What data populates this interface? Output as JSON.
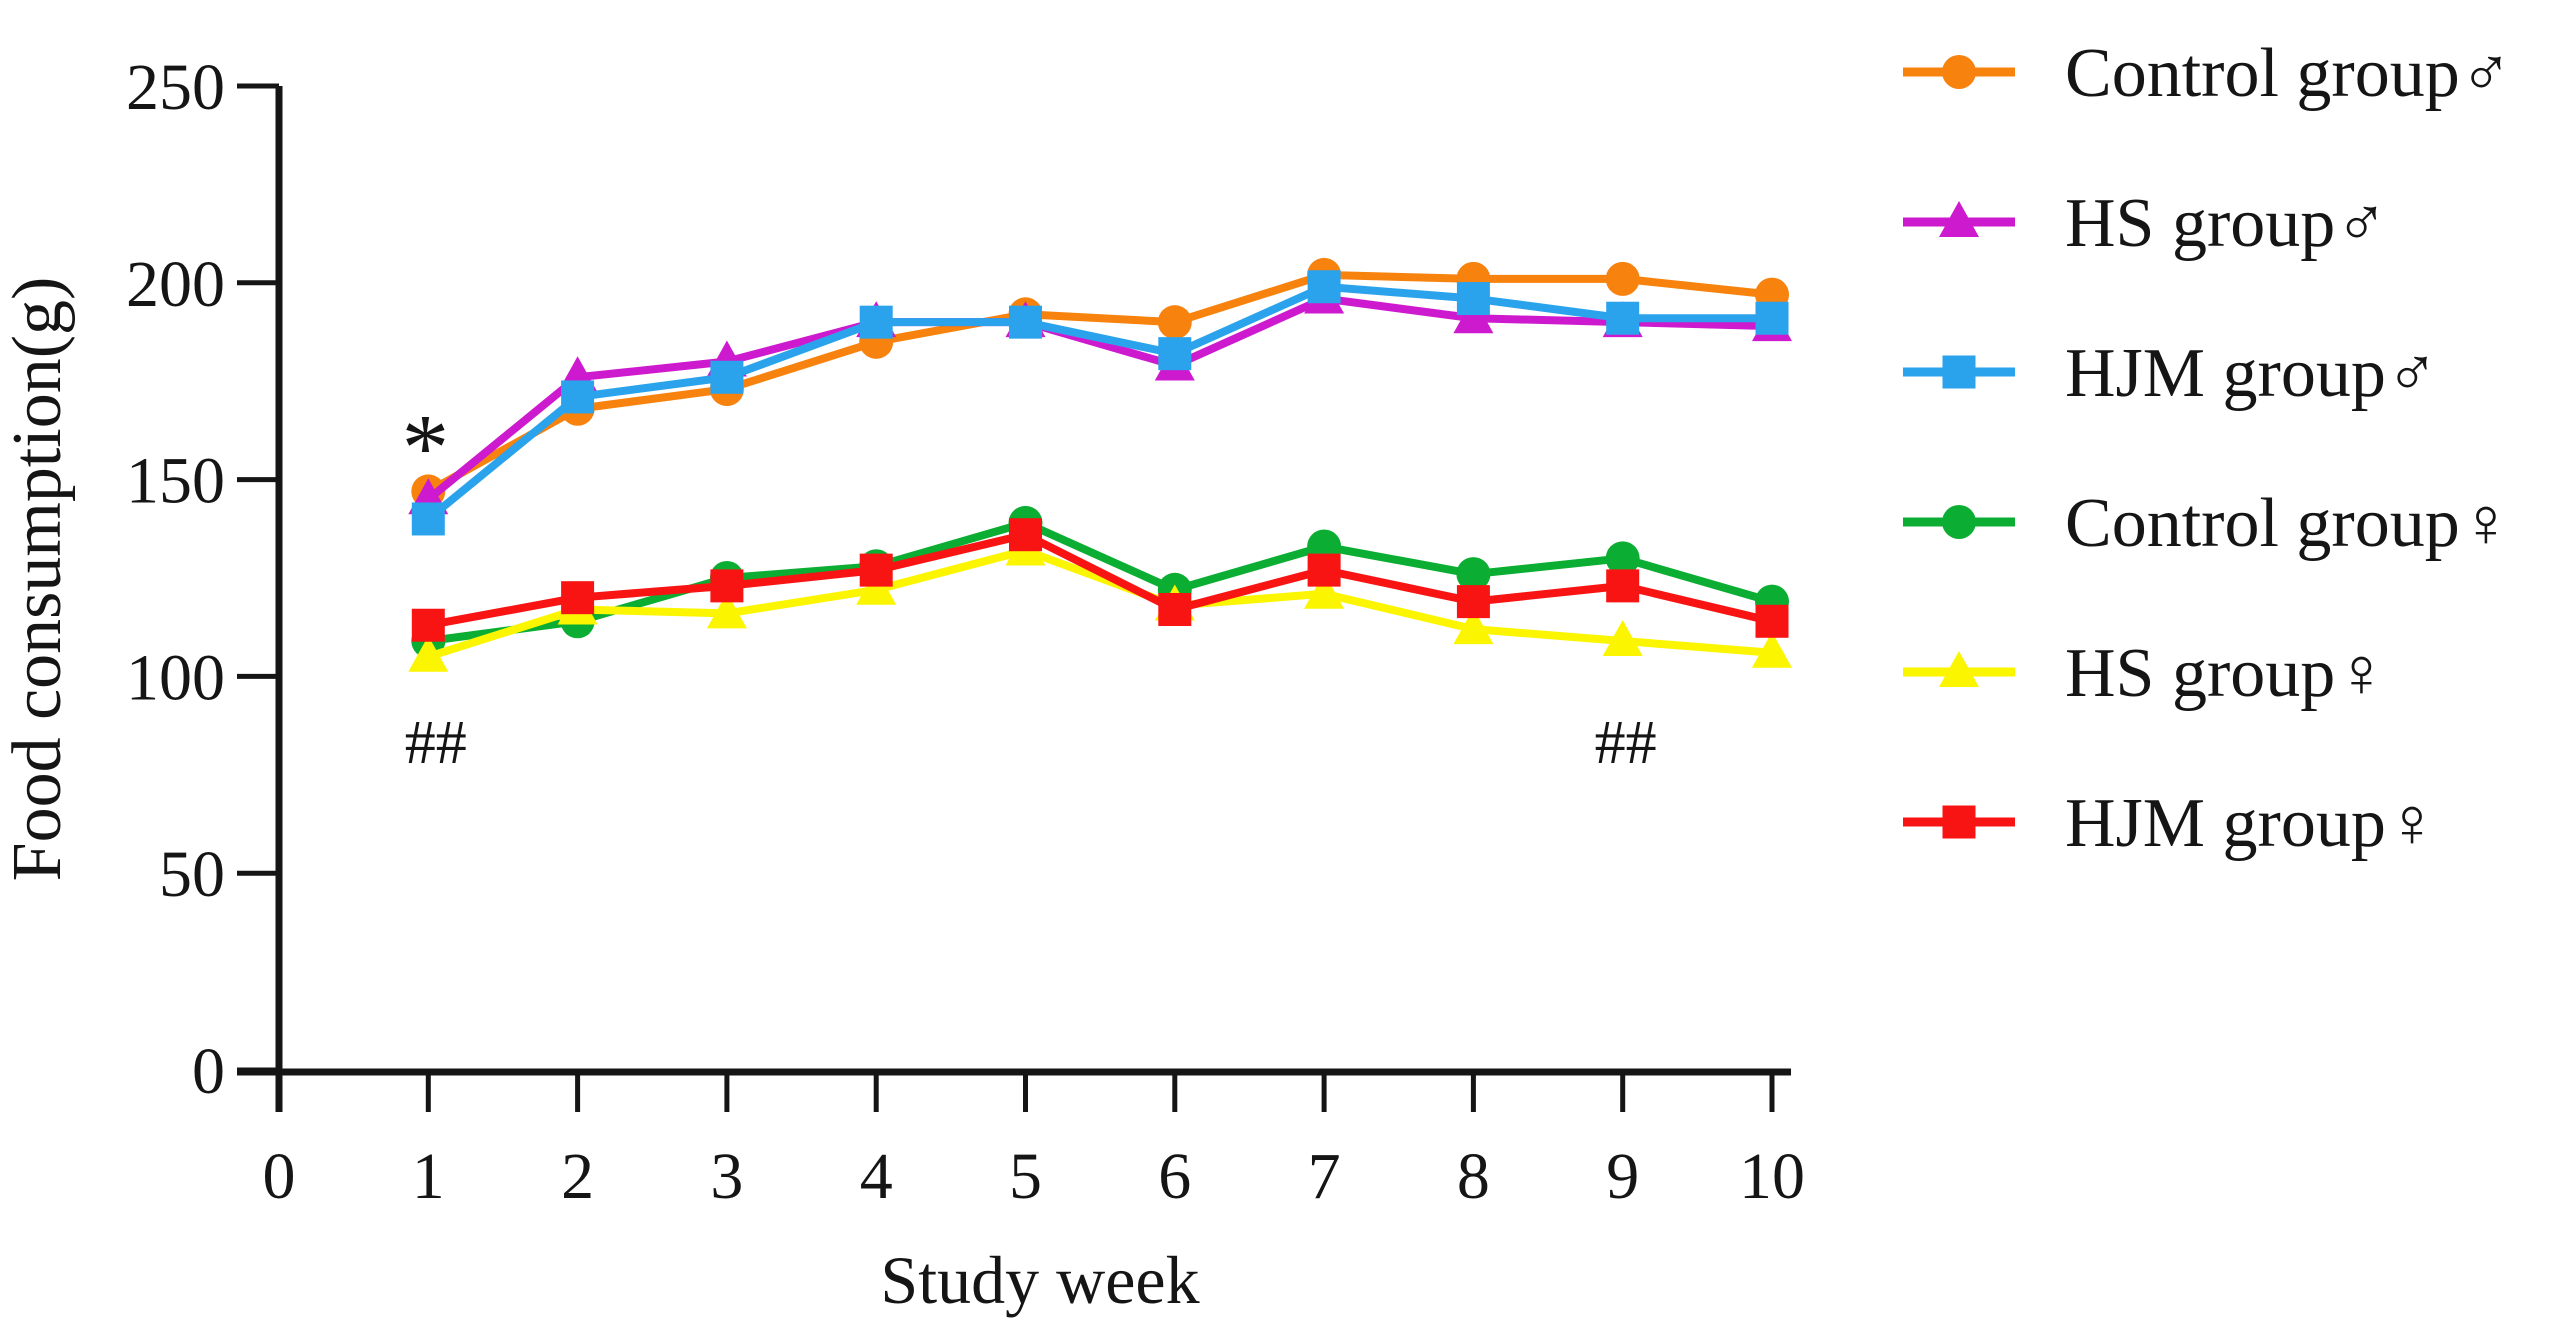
{
  "figure": {
    "background": "#ffffff",
    "text_color": "#151515",
    "axis_color": "#151515"
  },
  "chart_data": {
    "type": "line",
    "title": "",
    "xlabel": "Study week",
    "ylabel": "Food consumption(g)",
    "x": [
      1,
      2,
      3,
      4,
      5,
      6,
      7,
      8,
      9,
      10
    ],
    "xticks": [
      0,
      1,
      2,
      3,
      4,
      5,
      6,
      7,
      8,
      9,
      10
    ],
    "yticks": [
      0,
      50,
      100,
      150,
      200,
      250
    ],
    "xlim": [
      0,
      10.4
    ],
    "ylim": [
      0,
      250
    ],
    "grid": false,
    "legend_position": "right-outside",
    "series": [
      {
        "name": "Control group♂",
        "marker": "circle",
        "color": "#F7820D",
        "values": [
          147,
          168,
          173,
          185,
          192,
          190,
          202,
          201,
          201,
          197
        ]
      },
      {
        "name": "HS group♂",
        "marker": "triangle",
        "color": "#CE1ACE",
        "values": [
          145,
          176,
          180,
          190,
          190,
          179,
          196,
          191,
          190,
          189
        ]
      },
      {
        "name": "HJM group♂",
        "marker": "square",
        "color": "#2BA3EC",
        "values": [
          140,
          171,
          176,
          190,
          190,
          182,
          199,
          196,
          191,
          191
        ]
      },
      {
        "name": "Control group♀",
        "marker": "circle",
        "color": "#0BAE32",
        "values": [
          109,
          114,
          125,
          128,
          139,
          122,
          133,
          126,
          130,
          119
        ]
      },
      {
        "name": "HS group♀",
        "marker": "triangle",
        "color": "#FBF500",
        "values": [
          105,
          117,
          116,
          122,
          132,
          118,
          121,
          112,
          109,
          106
        ]
      },
      {
        "name": "HJM group♀",
        "marker": "square",
        "color": "#F91414",
        "values": [
          113,
          120,
          123,
          127,
          136,
          117,
          127,
          119,
          123,
          114
        ]
      }
    ],
    "annotations": [
      {
        "name": "star-week1",
        "text": "*",
        "week": 0.98,
        "value": 150,
        "font_size": 95
      },
      {
        "name": "hash-week1",
        "text": "##",
        "week": 1.05,
        "value": 78,
        "font_size": 62
      },
      {
        "name": "hash-week9",
        "text": "##",
        "week": 9.02,
        "value": 78,
        "font_size": 62
      }
    ]
  }
}
